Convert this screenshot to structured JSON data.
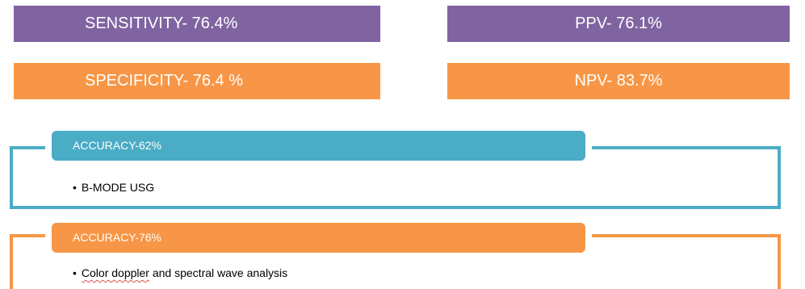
{
  "stats": {
    "sensitivity": "SENSITIVITY- 76.4%",
    "ppv": "PPV- 76.1%",
    "specificity": "SPECIFICITY- 76.4 %",
    "npv": "NPV- 83.7%"
  },
  "methods": [
    {
      "accuracy": "ACCURACY-62%",
      "bullet_pre": "",
      "bullet_flagged": "",
      "bullet_rest": "B-MODE USG"
    },
    {
      "accuracy": "ACCURACY-76%",
      "bullet_pre": "",
      "bullet_flagged": "Color doppler",
      "bullet_rest": " and spectral wave analysis"
    }
  ],
  "colors": {
    "purple": "#8064a2",
    "orange": "#f79646",
    "teal": "#4bacc6",
    "spellcheck": "#d9534f"
  }
}
